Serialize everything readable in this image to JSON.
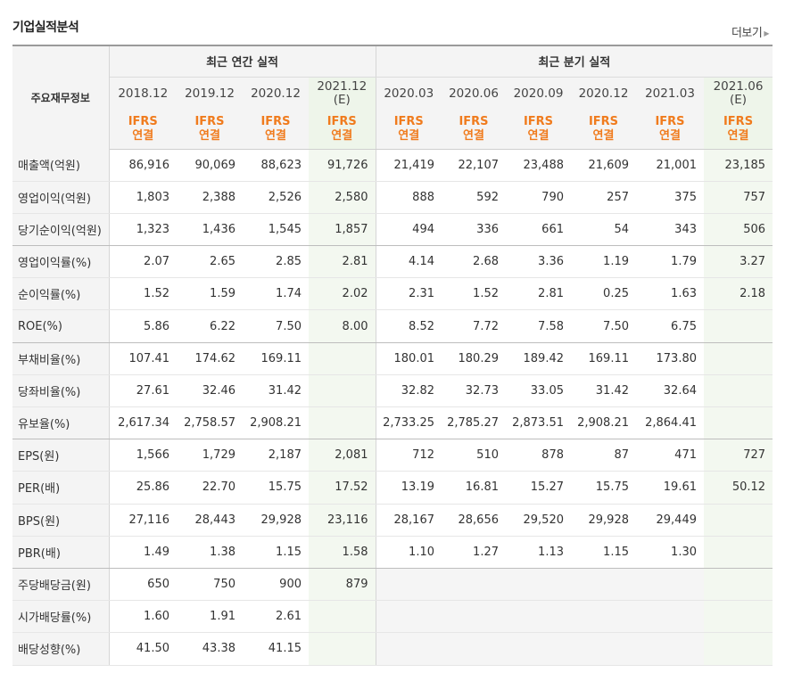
{
  "section": {
    "title": "기업실적분석",
    "more_label": "더보기"
  },
  "header": {
    "row_header": "주요재무정보",
    "annual_label": "최근 연간 실적",
    "quarter_label": "최근 분기 실적",
    "annual_periods": [
      "2018.12",
      "2019.12",
      "2020.12",
      "2021.12"
    ],
    "quarter_periods": [
      "2020.03",
      "2020.06",
      "2020.09",
      "2020.12",
      "2021.03",
      "2021.06"
    ],
    "estimate_mark": "(E)",
    "ifrs_label": "IFRS",
    "consolidated_label": "연결"
  },
  "rows": [
    {
      "label": "매출액(억원)",
      "values": [
        "86,916",
        "90,069",
        "88,623",
        "91,726",
        "21,419",
        "22,107",
        "23,488",
        "21,609",
        "21,001",
        "23,185"
      ]
    },
    {
      "label": "영업이익(억원)",
      "values": [
        "1,803",
        "2,388",
        "2,526",
        "2,580",
        "888",
        "592",
        "790",
        "257",
        "375",
        "757"
      ]
    },
    {
      "label": "당기순이익(억원)",
      "values": [
        "1,323",
        "1,436",
        "1,545",
        "1,857",
        "494",
        "336",
        "661",
        "54",
        "343",
        "506"
      ]
    },
    {
      "label": "영업이익률(%)",
      "values": [
        "2.07",
        "2.65",
        "2.85",
        "2.81",
        "4.14",
        "2.68",
        "3.36",
        "1.19",
        "1.79",
        "3.27"
      ]
    },
    {
      "label": "순이익률(%)",
      "values": [
        "1.52",
        "1.59",
        "1.74",
        "2.02",
        "2.31",
        "1.52",
        "2.81",
        "0.25",
        "1.63",
        "2.18"
      ]
    },
    {
      "label": "ROE(%)",
      "values": [
        "5.86",
        "6.22",
        "7.50",
        "8.00",
        "8.52",
        "7.72",
        "7.58",
        "7.50",
        "6.75",
        ""
      ]
    },
    {
      "label": "부채비율(%)",
      "values": [
        "107.41",
        "174.62",
        "169.11",
        "",
        "180.01",
        "180.29",
        "189.42",
        "169.11",
        "173.80",
        ""
      ]
    },
    {
      "label": "당좌비율(%)",
      "values": [
        "27.61",
        "32.46",
        "31.42",
        "",
        "32.82",
        "32.73",
        "33.05",
        "31.42",
        "32.64",
        ""
      ]
    },
    {
      "label": "유보율(%)",
      "values": [
        "2,617.34",
        "2,758.57",
        "2,908.21",
        "",
        "2,733.25",
        "2,785.27",
        "2,873.51",
        "2,908.21",
        "2,864.41",
        ""
      ]
    },
    {
      "label": "EPS(원)",
      "values": [
        "1,566",
        "1,729",
        "2,187",
        "2,081",
        "712",
        "510",
        "878",
        "87",
        "471",
        "727"
      ]
    },
    {
      "label": "PER(배)",
      "values": [
        "25.86",
        "22.70",
        "15.75",
        "17.52",
        "13.19",
        "16.81",
        "15.27",
        "15.75",
        "19.61",
        "50.12"
      ]
    },
    {
      "label": "BPS(원)",
      "values": [
        "27,116",
        "28,443",
        "29,928",
        "23,116",
        "28,167",
        "28,656",
        "29,520",
        "29,928",
        "29,449",
        ""
      ]
    },
    {
      "label": "PBR(배)",
      "values": [
        "1.49",
        "1.38",
        "1.15",
        "1.58",
        "1.10",
        "1.27",
        "1.13",
        "1.15",
        "1.30",
        ""
      ]
    },
    {
      "label": "주당배당금(원)",
      "values": [
        "650",
        "750",
        "900",
        "879",
        "",
        "",
        "",
        "",
        "",
        ""
      ]
    },
    {
      "label": "시가배당률(%)",
      "values": [
        "1.60",
        "1.91",
        "2.61",
        "",
        "",
        "",
        "",
        "",
        "",
        ""
      ]
    },
    {
      "label": "배당성향(%)",
      "values": [
        "41.50",
        "43.38",
        "41.15",
        "",
        "",
        "",
        "",
        "",
        "",
        ""
      ]
    }
  ]
}
